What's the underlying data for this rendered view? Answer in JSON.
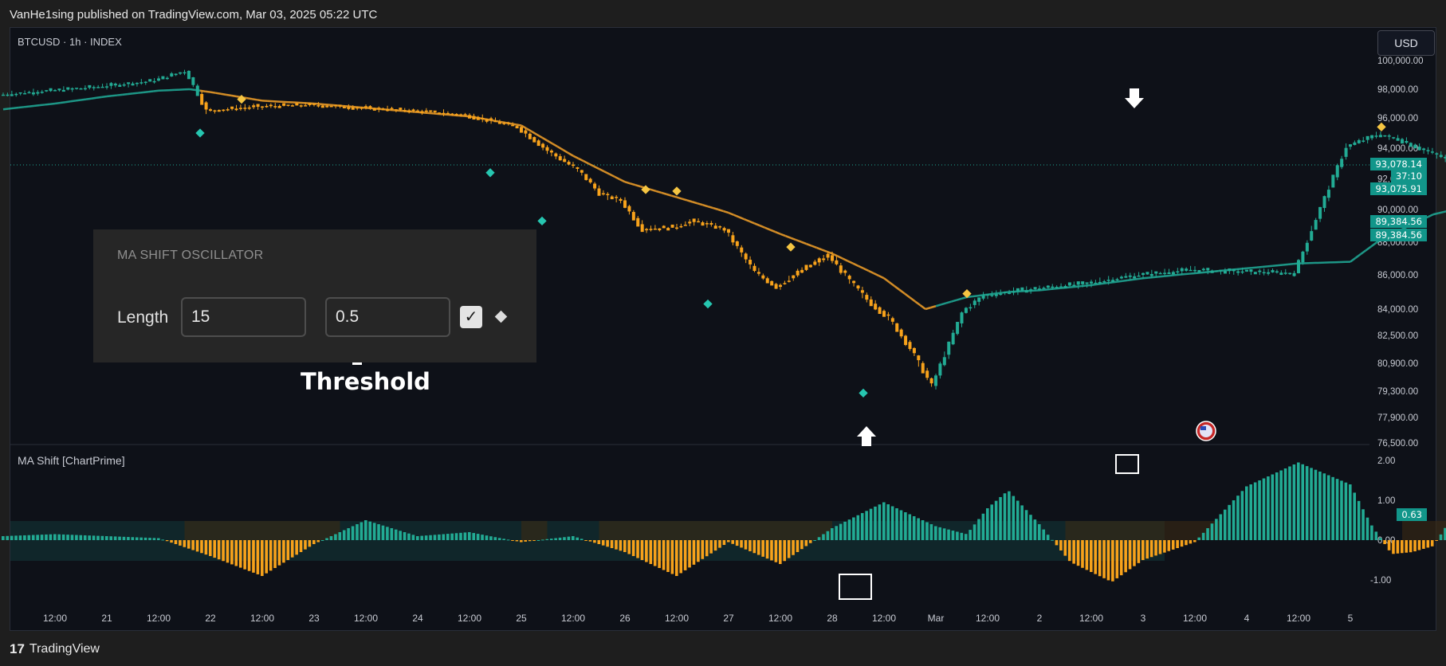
{
  "header": {
    "published": "VanHe1sing published on TradingView.com, Mar 03, 2025 05:22 UTC"
  },
  "chart_header": {
    "symbol": "BTCUSD · 1h · INDEX",
    "currency": "USD"
  },
  "oscillator": {
    "title": "MA Shift [ChartPrime]",
    "current": "0.63"
  },
  "price_tags": {
    "last": "93,078.14",
    "countdown": "37:10",
    "last2": "93,075.91",
    "ma1": "89,384.56",
    "ma2": "89,384.56"
  },
  "settings_panel": {
    "title": "MA SHIFT OSCILLATOR",
    "length_label": "Length",
    "length_value": "15",
    "threshold_value": "0.5"
  },
  "annotation": {
    "threshold": "Threshold"
  },
  "footer": {
    "brand": "TradingView",
    "logo": "17"
  },
  "colors": {
    "bull": "#22ab94",
    "bear": "#f7a21b",
    "ma_bull": "#1fa592",
    "ma_bear": "#e89a28",
    "signal": "#f5c542",
    "dot": "#26c6b0"
  },
  "chart_data": [
    {
      "type": "line",
      "title": "",
      "price_axis_ticks": [
        "100,000.00",
        "98,000.00",
        "96,000.00",
        "94,000.00",
        "92,000.00",
        "90,000.00",
        "88,000.00",
        "86,000.00",
        "84,000.00",
        "82,500.00",
        "80,900.00",
        "79,300.00",
        "77,900.00",
        "76,500.00"
      ],
      "time_axis_ticks": [
        "12:00",
        "21",
        "12:00",
        "22",
        "12:00",
        "23",
        "12:00",
        "24",
        "12:00",
        "25",
        "12:00",
        "26",
        "12:00",
        "27",
        "12:00",
        "28",
        "12:00",
        "Mar",
        "12:00",
        "2",
        "12:00",
        "3",
        "12:00",
        "4",
        "12:00",
        "5"
      ],
      "series": [
        {
          "x": [
            20.0,
            20.5,
            21.0,
            21.5,
            21.8,
            22.0,
            22.5,
            23.0,
            23.5,
            24.0,
            24.5,
            25.0,
            25.3,
            25.6,
            25.8,
            26.0,
            26.2,
            26.5,
            26.7,
            27.0,
            27.3,
            27.5,
            27.8,
            28.0,
            28.2,
            28.4,
            28.6,
            28.8,
            29.0,
            29.3,
            29.5,
            30.0,
            30.5,
            31.0,
            31.5,
            32.0,
            32.5,
            33.0,
            33.3,
            33.5,
            33.7,
            33.9,
            34.0
          ],
          "values": [
            97600,
            97900,
            98200,
            98600,
            99300,
            96500,
            96800,
            96900,
            96700,
            96500,
            96200,
            95400,
            93800,
            92500,
            91000,
            90600,
            88800,
            88900,
            89300,
            88800,
            86100,
            85300,
            86500,
            87200,
            85700,
            84400,
            83400,
            81700,
            79600,
            83900,
            84800,
            85200,
            85500,
            86000,
            86300,
            86200,
            86100,
            94100,
            94900,
            94600,
            94000,
            93500,
            93100
          ]
        },
        {
          "x": [
            20.0,
            20.5,
            21.0,
            21.5,
            21.8,
            22.0,
            22.5,
            23.0,
            23.5,
            24.0,
            24.5,
            25.0,
            25.5,
            26.0,
            26.5,
            27.0,
            27.5,
            28.0,
            28.5,
            28.9,
            29.3,
            29.7,
            30.0,
            30.5,
            31.0,
            31.5,
            32.0,
            32.5,
            33.0,
            33.3,
            33.6,
            33.8,
            34.0
          ],
          "values": [
            96600,
            97000,
            97500,
            97900,
            98000,
            97800,
            97200,
            97000,
            96700,
            96400,
            96100,
            95500,
            93500,
            91800,
            90800,
            89800,
            88500,
            87300,
            85800,
            84000,
            84700,
            85000,
            85100,
            85400,
            85800,
            86100,
            86400,
            86700,
            86800,
            88200,
            89100,
            89700,
            90000
          ]
        }
      ]
    },
    {
      "type": "bar",
      "title": "",
      "y_axis_ticks": [
        "2.00",
        "1.00",
        "0.00",
        "-1.00"
      ],
      "ylim": [
        -1.3,
        2.05
      ],
      "series": [
        {
          "x": [
            20.0,
            20.5,
            21.0,
            21.5,
            22.0,
            22.5,
            23.0,
            23.5,
            24.0,
            24.5,
            25.0,
            25.5,
            26.0,
            26.5,
            27.0,
            27.5,
            28.0,
            28.5,
            29.0,
            29.3,
            29.5,
            29.7,
            30.0,
            30.3,
            30.7,
            31.0,
            31.5,
            32.0,
            32.5,
            33.0,
            33.2,
            33.4,
            33.6,
            33.8,
            34.0
          ],
          "values": [
            0.1,
            0.15,
            0.1,
            0.05,
            -0.4,
            -0.9,
            -0.1,
            0.5,
            0.1,
            0.2,
            -0.05,
            0.1,
            -0.3,
            -0.9,
            -0.05,
            -0.6,
            0.3,
            0.95,
            0.35,
            0.15,
            0.8,
            1.25,
            0.4,
            -0.55,
            -1.05,
            -0.5,
            -0.05,
            1.35,
            1.95,
            1.4,
            0.4,
            -0.35,
            -0.3,
            -0.15,
            0.63
          ]
        }
      ]
    }
  ]
}
